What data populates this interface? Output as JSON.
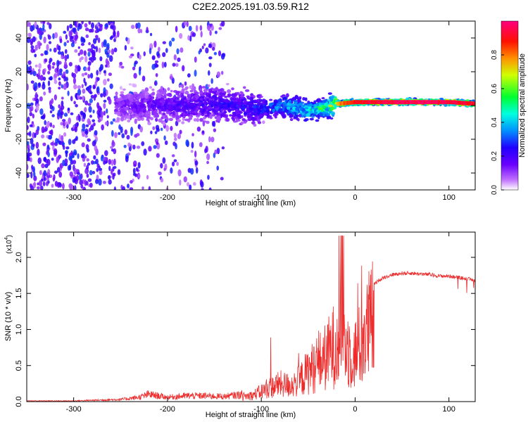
{
  "title": "C2E2.2025.191.03.59.R12",
  "chart_data": [
    {
      "type": "heatmap",
      "title": "C2E2.2025.191.03.59.R12",
      "xlabel": "Height of straight line (km)",
      "ylabel": "Frequency (Hz)",
      "xlim": [
        -350,
        128
      ],
      "ylim": [
        -50,
        50
      ],
      "x_ticks": [
        -300,
        -200,
        -100,
        0,
        100
      ],
      "y_ticks": [
        -40,
        -20,
        0,
        20,
        40
      ],
      "colorbar": {
        "label": "Normalized spectral amplitude",
        "range": [
          0,
          1
        ],
        "ticks": [
          "0.0",
          "0.2",
          "0.4",
          "0.6",
          "0.8"
        ],
        "colormap": [
          "#ffffff",
          "#b040ff",
          "#3000ff",
          "#0080ff",
          "#00ffff",
          "#00ff40",
          "#ffff00",
          "#ff8000",
          "#ff0000",
          "#ff00a0"
        ]
      },
      "ridge": {
        "description_points_x": [
          -250,
          -200,
          -150,
          -100,
          -75,
          -50,
          -30,
          -20,
          0,
          50,
          100,
          128
        ],
        "center_freq": [
          0,
          0,
          1,
          -2,
          0,
          -3,
          -1,
          1,
          2,
          2,
          2,
          1
        ],
        "amplitude": [
          0.15,
          0.2,
          0.25,
          0.3,
          0.45,
          0.5,
          0.6,
          0.8,
          0.95,
          1.0,
          0.98,
          0.95
        ]
      }
    },
    {
      "type": "line",
      "xlabel": "Height of straight line (km)",
      "ylabel": "SNR (10 * v/v)",
      "y_multiplier": "(x10",
      "y_multiplier_exp": "4",
      "xlim": [
        -350,
        128
      ],
      "ylim": [
        0,
        2.35
      ],
      "x_ticks": [
        -300,
        -200,
        -100,
        0,
        100
      ],
      "y_ticks": [
        0.0,
        0.5,
        1.0,
        1.5,
        2.0
      ],
      "y_tick_labels": [
        "0.0",
        "0.5",
        "1.0",
        "1.5",
        "2.0"
      ],
      "color": "#ee2a2a",
      "series": [
        {
          "x": [
            -350,
            -300,
            -250,
            -230,
            -220,
            -200,
            -180,
            -160,
            -140,
            -120,
            -110,
            -100,
            -90,
            -80,
            -70,
            -60,
            -50,
            -40,
            -30,
            -25,
            -20,
            -15,
            -10,
            -5,
            0,
            5,
            10,
            15,
            20,
            25,
            30,
            40,
            50,
            60,
            70,
            80,
            90,
            100,
            110,
            120,
            128
          ],
          "values": [
            0.01,
            0.01,
            0.03,
            0.06,
            0.1,
            0.06,
            0.08,
            0.08,
            0.07,
            0.1,
            0.12,
            0.2,
            0.28,
            0.35,
            0.32,
            0.4,
            0.6,
            0.75,
            0.9,
            1.05,
            1.15,
            1.3,
            1.1,
            1.0,
            0.95,
            1.1,
            1.3,
            1.5,
            1.62,
            1.68,
            1.72,
            1.76,
            1.78,
            1.78,
            1.77,
            1.76,
            1.74,
            1.74,
            1.72,
            1.7,
            1.68
          ]
        }
      ]
    }
  ]
}
